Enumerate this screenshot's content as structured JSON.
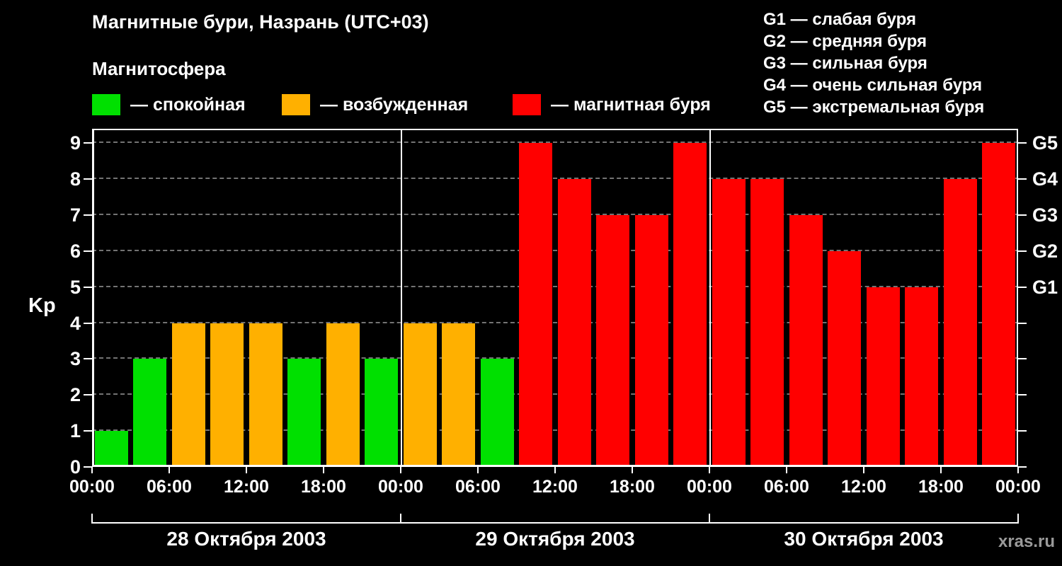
{
  "title": "Магнитные бури, Назрань (UTC+03)",
  "subtitle": "Магнитосфера",
  "watermark": "xras.ru",
  "legend": [
    {
      "key": "quiet",
      "color": "#00e000",
      "label": "— спокойная"
    },
    {
      "key": "excited",
      "color": "#ffb000",
      "label": "— возбужденная"
    },
    {
      "key": "storm",
      "color": "#ff0000",
      "label": "— магнитная буря"
    }
  ],
  "g_legend": [
    "G1 — слабая буря",
    "G2 — средняя буря",
    "G3 — сильная буря",
    "G4 — очень сильная буря",
    "G5 — экстремальная буря"
  ],
  "chart_data": {
    "type": "bar",
    "title": "Магнитные бури, Назрань (UTC+03)",
    "ylabel": "Kp",
    "ylim": [
      0,
      9
    ],
    "yticks": [
      0,
      1,
      2,
      3,
      4,
      5,
      6,
      7,
      8,
      9
    ],
    "grid": "dashed horizontal",
    "legend_position": "top",
    "bar_interval_hours": 3,
    "colors": {
      "quiet": "#00e000",
      "excited": "#ffb000",
      "storm": "#ff0000"
    },
    "color_rule": "Kp<=3 quiet(green), Kp==4 excited(orange), Kp>=5 storm(red)",
    "g_axis": [
      {
        "kp": 9,
        "label": "G5"
      },
      {
        "kp": 8,
        "label": "G4"
      },
      {
        "kp": 7,
        "label": "G3"
      },
      {
        "kp": 6,
        "label": "G2"
      },
      {
        "kp": 5,
        "label": "G1"
      }
    ],
    "x_tick_labels": [
      "00:00",
      "06:00",
      "12:00",
      "18:00",
      "00:00",
      "06:00",
      "12:00",
      "18:00",
      "00:00",
      "06:00",
      "12:00",
      "18:00",
      "00:00"
    ],
    "days": [
      {
        "date": "28 Октября 2003",
        "values": [
          1,
          3,
          4,
          4,
          4,
          3,
          4,
          3
        ]
      },
      {
        "date": "29 Октября 2003",
        "values": [
          4,
          4,
          3,
          9,
          8,
          7,
          7,
          9
        ]
      },
      {
        "date": "30 Октября 2003",
        "values": [
          8,
          8,
          7,
          6,
          5,
          5,
          8,
          9
        ]
      }
    ]
  }
}
